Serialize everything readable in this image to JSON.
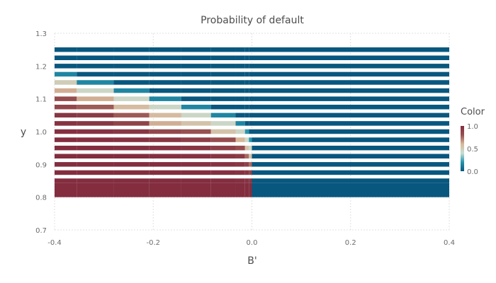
{
  "chart_data": {
    "type": "heatmap",
    "title": "Probability of default",
    "xlabel": "B'",
    "ylabel": "y",
    "xlim": [
      -0.4,
      0.4
    ],
    "ylim": [
      0.7,
      1.3
    ],
    "xticks": [
      -0.4,
      -0.2,
      0.0,
      0.2,
      0.4
    ],
    "xtick_labels": [
      "-0.4",
      "-0.2",
      "0.0",
      "0.2",
      "0.4"
    ],
    "yticks": [
      0.7,
      0.8,
      0.9,
      1.0,
      1.1,
      1.2,
      1.3
    ],
    "ytick_labels": [
      "0.7",
      "0.8",
      "0.9",
      "1.0",
      "1.1",
      "1.2",
      "1.3"
    ],
    "grid": true,
    "colorbar": {
      "title": "Color",
      "range": [
        0.0,
        1.0
      ],
      "ticks": [
        0.0,
        0.5,
        1.0
      ],
      "tick_labels": [
        "0.0",
        "0.5",
        "1.0"
      ],
      "colors": [
        "#08577f",
        "#2695ad",
        "#c7e0d4",
        "#d7b89a",
        "#985050",
        "#832d3f"
      ]
    },
    "x_edges": [
      -0.4,
      -0.355,
      -0.28,
      -0.208,
      -0.143,
      -0.083,
      -0.033,
      -0.014,
      -0.006,
      0.0,
      0.4
    ],
    "rows": [
      {
        "y": [
          1.243,
          1.257
        ],
        "values": [
          0,
          0,
          0,
          0,
          0,
          0,
          0,
          0,
          0,
          0
        ]
      },
      {
        "y": [
          1.218,
          1.232
        ],
        "values": [
          0,
          0,
          0,
          0,
          0,
          0,
          0,
          0,
          0,
          0
        ]
      },
      {
        "y": [
          1.193,
          1.207
        ],
        "values": [
          0,
          0,
          0,
          0,
          0,
          0,
          0,
          0,
          0,
          0
        ]
      },
      {
        "y": [
          1.168,
          1.182
        ],
        "values": [
          0.15,
          0,
          0,
          0,
          0,
          0,
          0,
          0,
          0,
          0
        ]
      },
      {
        "y": [
          1.143,
          1.157
        ],
        "values": [
          0.5,
          0.15,
          0,
          0,
          0,
          0,
          0,
          0,
          0,
          0
        ]
      },
      {
        "y": [
          1.118,
          1.132
        ],
        "values": [
          0.62,
          0.45,
          0.15,
          0,
          0,
          0,
          0,
          0,
          0,
          0
        ]
      },
      {
        "y": [
          1.093,
          1.107
        ],
        "values": [
          0.82,
          0.62,
          0.45,
          0.15,
          0,
          0,
          0,
          0,
          0,
          0
        ]
      },
      {
        "y": [
          1.068,
          1.082
        ],
        "values": [
          0.85,
          0.78,
          0.58,
          0.45,
          0.15,
          0,
          0,
          0,
          0,
          0
        ]
      },
      {
        "y": [
          1.043,
          1.057
        ],
        "values": [
          0.95,
          0.92,
          0.78,
          0.58,
          0.45,
          0.15,
          0,
          0,
          0,
          0
        ]
      },
      {
        "y": [
          1.018,
          1.032
        ],
        "values": [
          0.97,
          0.95,
          0.88,
          0.62,
          0.55,
          0.45,
          0.15,
          0,
          0,
          0
        ]
      },
      {
        "y": [
          0.993,
          1.007
        ],
        "values": [
          0.98,
          0.97,
          0.95,
          0.85,
          0.8,
          0.55,
          0.45,
          0.2,
          0,
          0
        ]
      },
      {
        "y": [
          0.968,
          0.982
        ],
        "values": [
          1,
          0.98,
          0.97,
          0.95,
          0.9,
          0.82,
          0.6,
          0.42,
          0.2,
          0
        ]
      },
      {
        "y": [
          0.943,
          0.957
        ],
        "values": [
          1,
          1,
          0.98,
          0.97,
          0.95,
          0.9,
          0.82,
          0.55,
          0.45,
          0
        ]
      },
      {
        "y": [
          0.918,
          0.932
        ],
        "values": [
          1,
          1,
          1,
          0.98,
          0.97,
          0.95,
          0.92,
          0.75,
          0.55,
          0
        ]
      },
      {
        "y": [
          0.893,
          0.907
        ],
        "values": [
          1,
          1,
          1,
          1,
          0.98,
          0.97,
          0.95,
          0.9,
          0.75,
          0
        ]
      },
      {
        "y": [
          0.868,
          0.882
        ],
        "values": [
          1,
          1,
          1,
          1,
          1,
          0.98,
          0.97,
          0.95,
          0.88,
          0
        ]
      },
      {
        "y": [
          0.843,
          0.857
        ],
        "values": [
          1,
          1,
          1,
          1,
          1,
          1,
          0.98,
          0.97,
          0.95,
          0
        ]
      },
      {
        "y": [
          0.8,
          0.843
        ],
        "values": [
          1,
          1,
          1,
          1,
          1,
          1,
          1,
          1,
          1,
          0
        ]
      }
    ]
  }
}
